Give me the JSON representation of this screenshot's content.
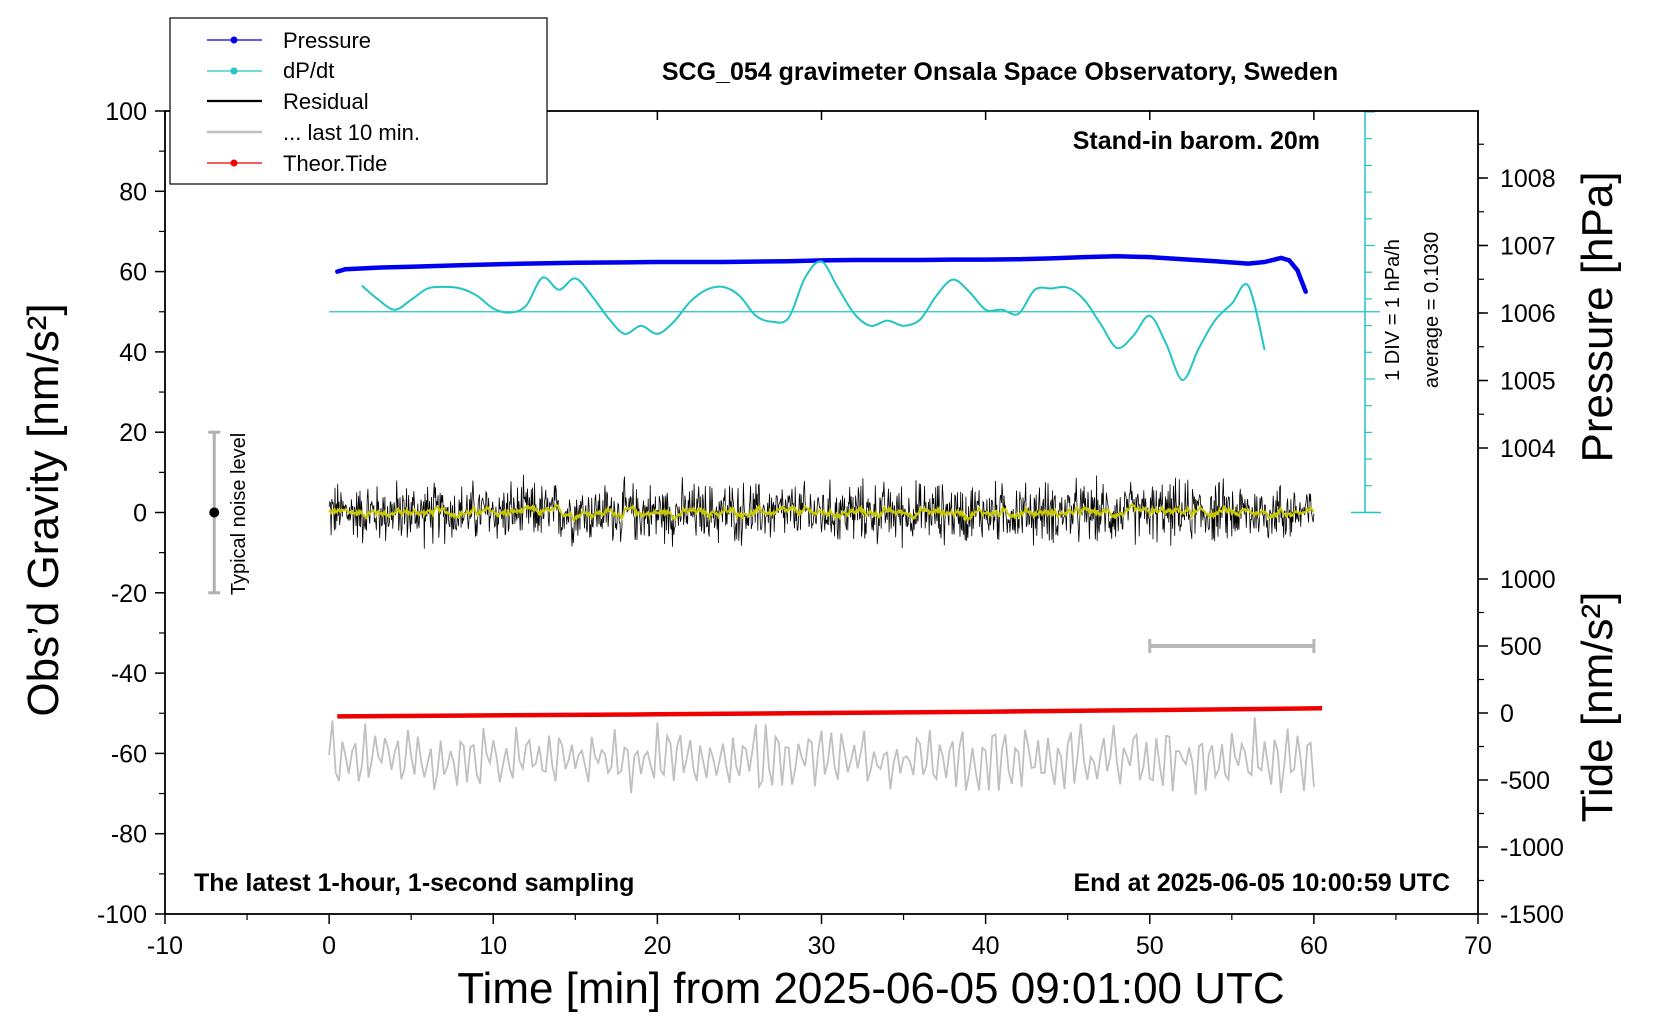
{
  "chart_data": {
    "type": "line",
    "title": "SCG_054 gravimeter Onsala Space Observatory, Sweden",
    "xlabel": "Time [min] from 2025-06-05 09:01:00 UTC",
    "ylabel_left": "Obs’d Gravity [nm/s²]",
    "ylabel_right_top": "Pressure [hPa]",
    "ylabel_right_bottom": "Tide [nm/s²]",
    "xlim": [
      -10,
      70
    ],
    "ylim": [
      -100,
      100
    ],
    "x_ticks": [
      "-10",
      "0",
      "10",
      "20",
      "30",
      "40",
      "50",
      "60",
      "70"
    ],
    "y_ticks": [
      "100",
      "80",
      "60",
      "40",
      "20",
      "0",
      "-20",
      "-40",
      "-60",
      "-80",
      "-100"
    ],
    "pressure_ticks": [
      "1008",
      "1007",
      "1006",
      "1005",
      "1004"
    ],
    "tide_ticks": [
      "1000",
      "500",
      "0",
      "-500",
      "-1000",
      "-1500"
    ],
    "legend": [
      "Pressure",
      "dP/dt",
      "Residual",
      "... last 10 min.",
      "Theor.Tide"
    ],
    "legend_placement": "top-left",
    "grid": false,
    "annotations": {
      "barometer": "Stand-in barom. 20m",
      "div_label": "1 DIV = 1 hPa/h",
      "average_label": "average = 0.1030",
      "noise_label": "Typical noise level",
      "bottom_left": "The latest 1-hour, 1-second sampling",
      "bottom_right": "End at 2025-06-05 10:00:59 UTC"
    },
    "colors": {
      "pressure": "#0000ee",
      "dpdt": "#22c4c4",
      "residual": "#000000",
      "residual_smooth": "#c8c800",
      "last10": "#c0c0c0",
      "tide": "#ee0000",
      "noise_bar": "#b0b0b0",
      "window_bar": "#b8b8b8"
    },
    "series": [
      {
        "name": "Pressure",
        "y_axis": "left",
        "x": [
          0.5,
          1,
          3,
          5,
          8,
          10,
          12,
          15,
          18,
          20,
          24,
          28,
          30,
          32,
          34,
          36,
          38,
          40,
          42,
          44,
          46,
          48,
          50,
          52,
          54,
          56,
          57,
          58,
          58.5,
          59,
          59.5
        ],
        "y": [
          60.0,
          60.6,
          61.0,
          61.2,
          61.6,
          61.8,
          62.0,
          62.2,
          62.3,
          62.4,
          62.4,
          62.6,
          62.8,
          62.9,
          62.9,
          62.9,
          63.0,
          63.0,
          63.1,
          63.3,
          63.6,
          63.8,
          63.6,
          63.1,
          62.6,
          62.0,
          62.4,
          63.4,
          62.8,
          60.3,
          55.0
        ]
      },
      {
        "name": "dP/dt",
        "y_axis": "left",
        "x": [
          2,
          3,
          4,
          5,
          6,
          7,
          8,
          9,
          10,
          11,
          12,
          13,
          14,
          15,
          16,
          17,
          18,
          19,
          20,
          21,
          22,
          23,
          24,
          25,
          26,
          27,
          28,
          29,
          30,
          31,
          32,
          33,
          34,
          35,
          36,
          37,
          38,
          39,
          40,
          41,
          42,
          43,
          44,
          45,
          46,
          47,
          48,
          49,
          50,
          51,
          52,
          53,
          54,
          55,
          56,
          57
        ],
        "y": [
          56.5,
          53,
          50.5,
          53,
          55.8,
          56.2,
          55.8,
          54,
          50.8,
          49.8,
          51.5,
          58.5,
          55.5,
          58.3,
          54,
          48.5,
          44.5,
          46.5,
          44.5,
          47.5,
          52.5,
          55.5,
          56.2,
          54,
          49,
          47.5,
          48.5,
          58.5,
          62.5,
          56,
          49.5,
          46.5,
          47.8,
          46.5,
          48,
          54,
          58,
          55,
          50.5,
          50.5,
          49.5,
          55.5,
          55.8,
          56,
          53,
          47,
          41,
          44,
          49,
          42,
          33,
          41,
          48,
          52,
          56.5,
          40.5
        ]
      },
      {
        "name": "Residual",
        "y_axis": "left",
        "x_range": [
          0,
          60
        ],
        "y_center": 0,
        "y_envelope": [
          -12,
          12
        ]
      },
      {
        "name": "... last 10 min.",
        "y_axis": "left",
        "x_range": [
          0,
          60
        ],
        "y_center": -61.5,
        "y_envelope": [
          -75,
          -51
        ]
      },
      {
        "name": "Theor.Tide",
        "y_axis": "tide",
        "x": [
          0.5,
          10,
          20,
          30,
          40,
          50,
          60.5
        ],
        "y": [
          -25,
          -18,
          -10,
          0,
          10,
          22,
          35
        ]
      }
    ],
    "dpdt_baseline": 50,
    "noise_level": {
      "x": -7,
      "y": [
        -20,
        20
      ]
    },
    "window_bar": {
      "x": [
        50,
        60
      ],
      "y_tide": 500
    }
  }
}
